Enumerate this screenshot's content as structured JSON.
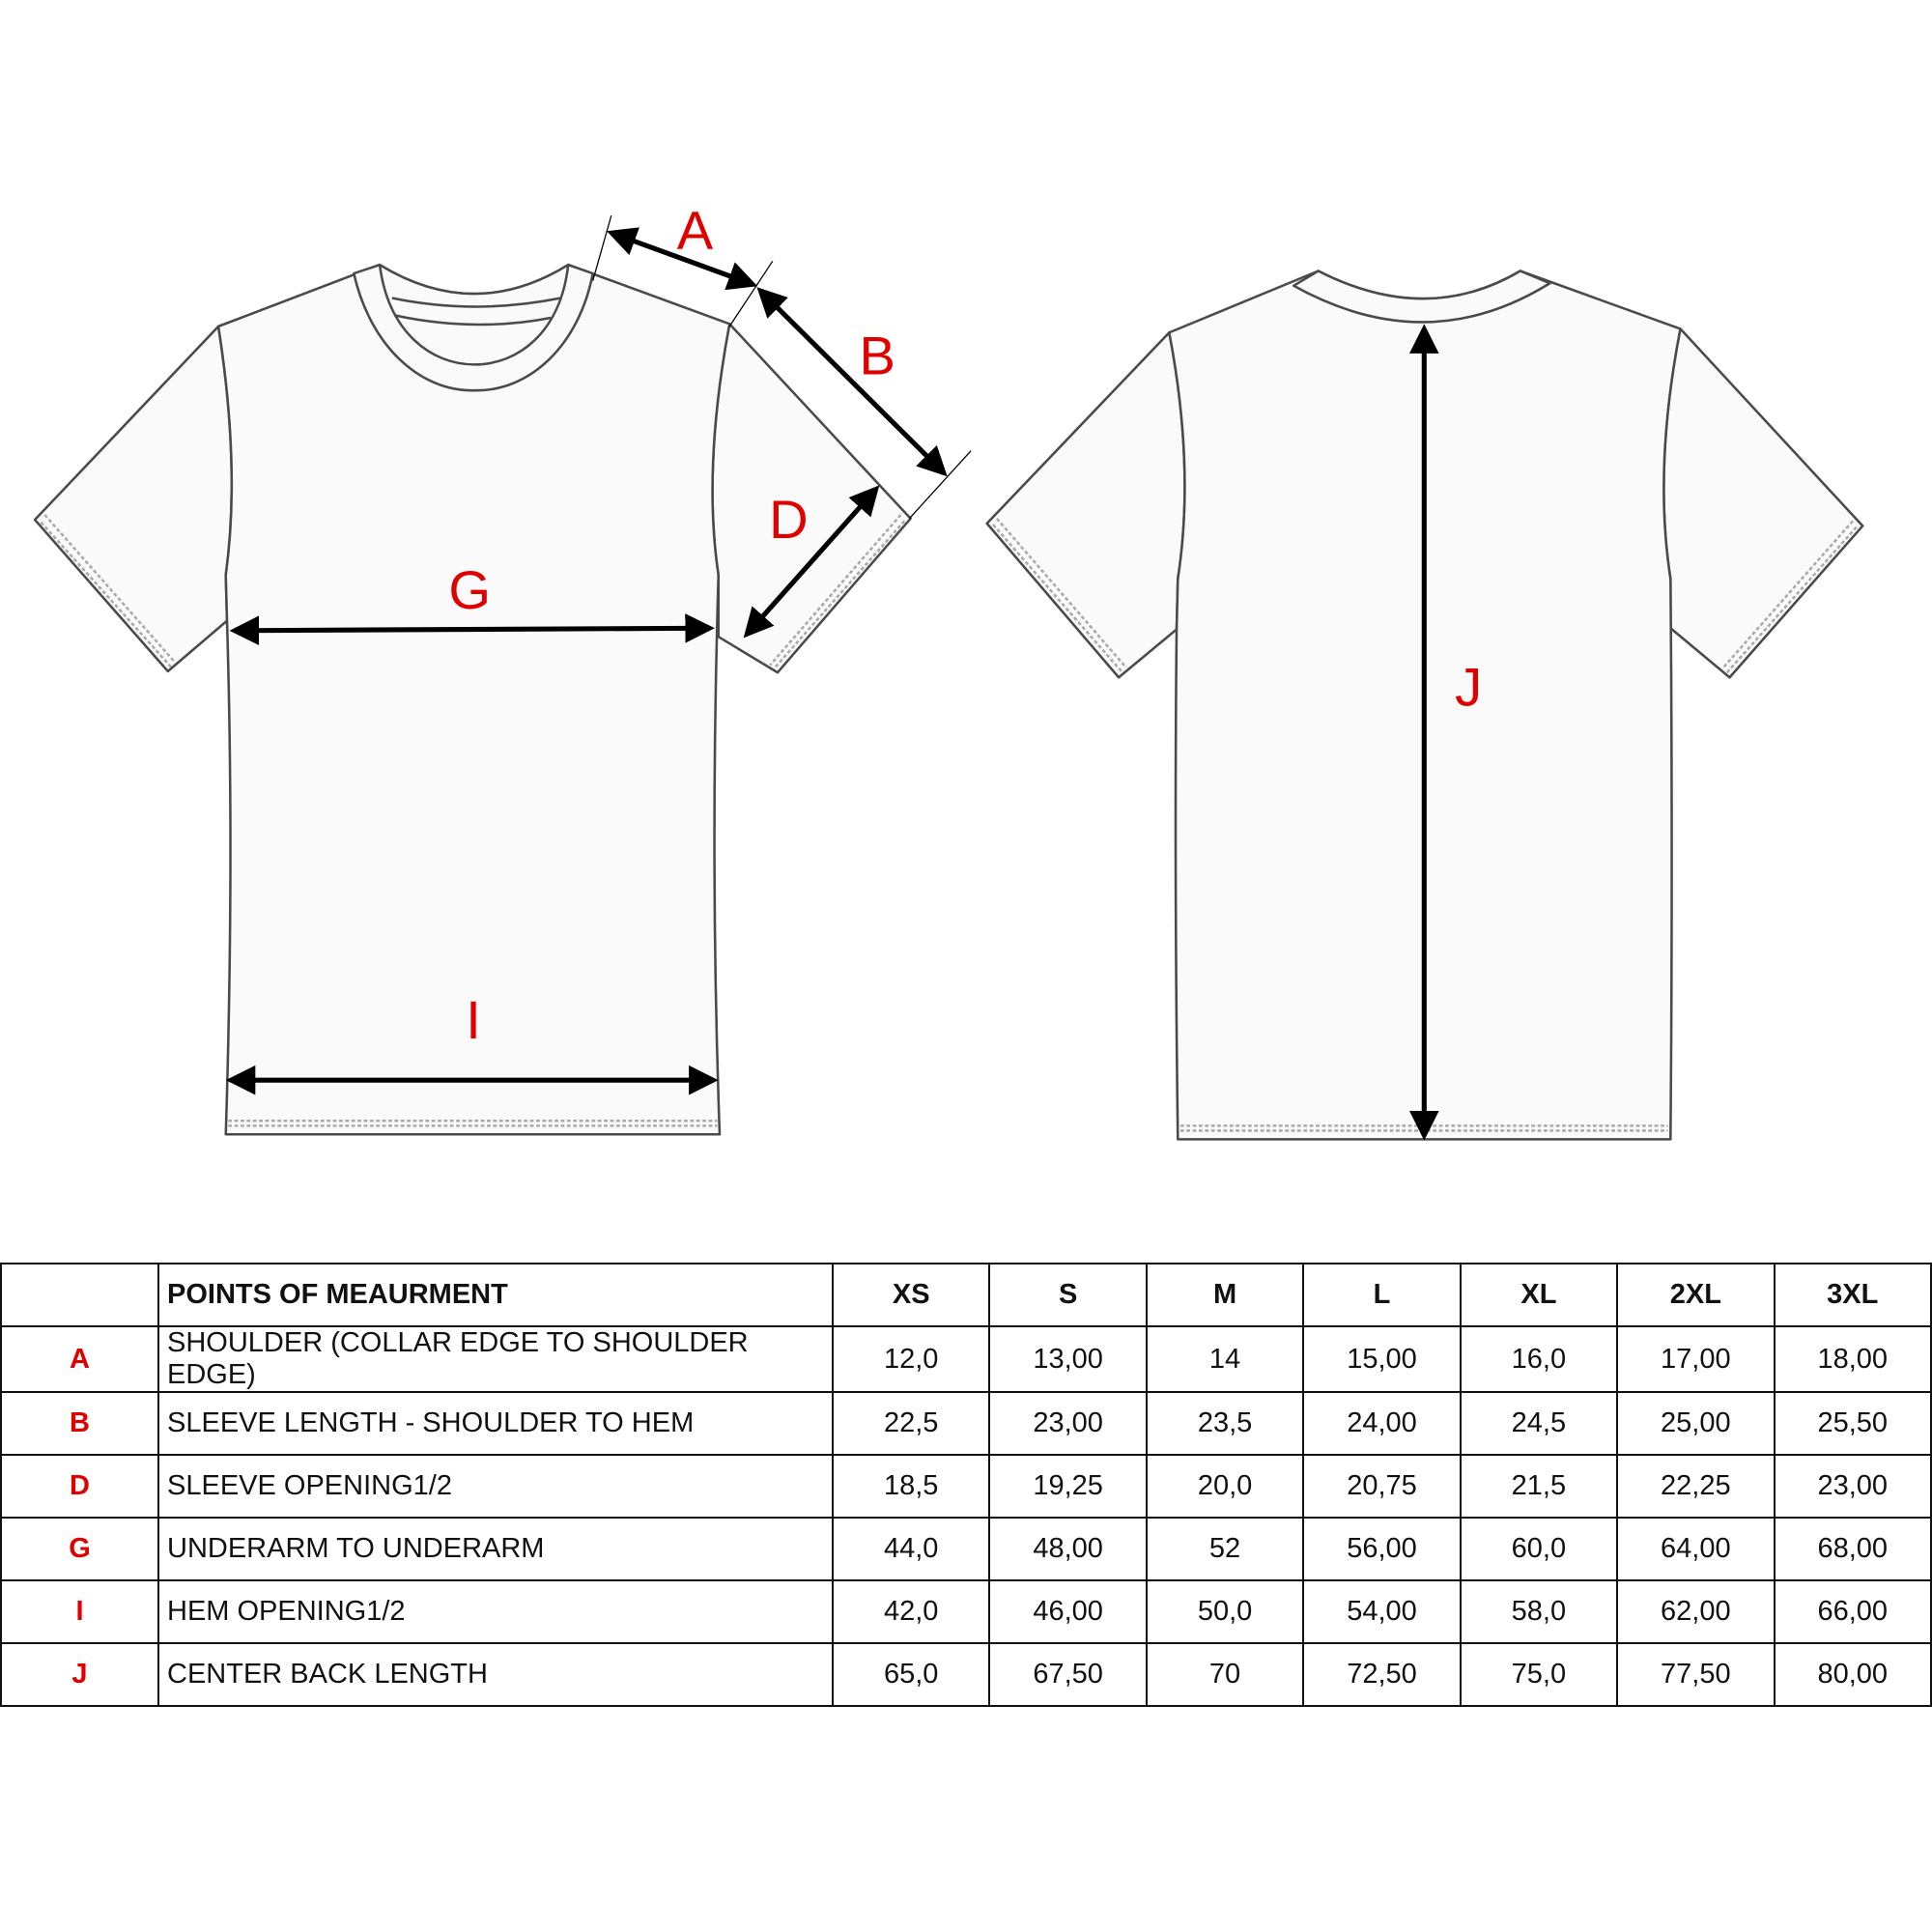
{
  "diagram": {
    "labels": {
      "A": "A",
      "B": "B",
      "D": "D",
      "G": "G",
      "I": "I",
      "J": "J"
    },
    "label_color": "#e00000",
    "views": [
      "front",
      "back"
    ]
  },
  "table": {
    "header": {
      "code": "",
      "pom": "POINTS OF MEAURMENT",
      "sizes": [
        "XS",
        "S",
        "M",
        "L",
        "XL",
        "2XL",
        "3XL"
      ]
    },
    "rows": [
      {
        "code": "A",
        "pom": "SHOULDER (COLLAR EDGE TO SHOULDER EDGE)",
        "values": [
          "12,0",
          "13,00",
          "14",
          "15,00",
          "16,0",
          "17,00",
          "18,00"
        ]
      },
      {
        "code": "B",
        "pom": "SLEEVE LENGTH - SHOULDER TO HEM",
        "values": [
          "22,5",
          "23,00",
          "23,5",
          "24,00",
          "24,5",
          "25,00",
          "25,50"
        ]
      },
      {
        "code": "D",
        "pom": "SLEEVE OPENING1/2",
        "values": [
          "18,5",
          "19,25",
          "20,0",
          "20,75",
          "21,5",
          "22,25",
          "23,00"
        ]
      },
      {
        "code": "G",
        "pom": "UNDERARM TO UNDERARM",
        "values": [
          "44,0",
          "48,00",
          "52",
          "56,00",
          "60,0",
          "64,00",
          "68,00"
        ]
      },
      {
        "code": "I",
        "pom": "HEM OPENING1/2",
        "values": [
          "42,0",
          "46,00",
          "50,0",
          "54,00",
          "58,0",
          "62,00",
          "66,00"
        ]
      },
      {
        "code": "J",
        "pom": "CENTER BACK LENGTH",
        "values": [
          "65,0",
          "67,50",
          "70",
          "72,50",
          "75,0",
          "77,50",
          "80,00"
        ]
      }
    ]
  }
}
